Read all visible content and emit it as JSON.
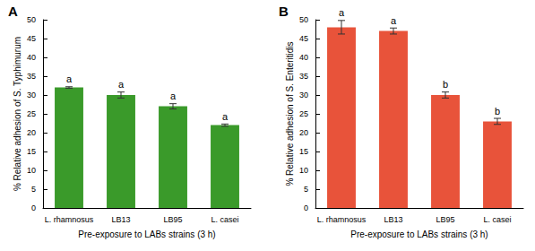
{
  "chart_data": [
    {
      "type": "bar",
      "title": "A",
      "x_label": "Pre-exposure to LABs strains (3 h)",
      "y_label": "% Relative adhesion of S. Typhimurum",
      "categories": [
        "L. rhamnosus",
        "LB13",
        "LB95",
        "L. casei"
      ],
      "values": [
        32,
        30,
        27,
        22
      ],
      "errors": [
        0.2,
        0.8,
        0.7,
        0.3
      ],
      "annotations": [
        "a",
        "a",
        "a",
        "a"
      ],
      "color": "#3a9a2a",
      "ylim": [
        0,
        50
      ],
      "yticks": [
        0,
        5,
        10,
        15,
        20,
        25,
        30,
        35,
        40,
        45,
        50
      ]
    },
    {
      "type": "bar",
      "title": "B",
      "x_label": "Pre-exposure to LABs strains (3 h)",
      "y_label": "% Relative adhesion of S. Enteritidis",
      "categories": [
        "L. rhamnosus",
        "LB13",
        "LB95",
        "L. casei"
      ],
      "values": [
        48,
        47,
        30,
        23
      ],
      "errors": [
        1.8,
        0.8,
        0.8,
        0.8
      ],
      "annotations": [
        "a",
        "a",
        "b",
        "b"
      ],
      "color": "#e8533a",
      "ylim": [
        0,
        50
      ],
      "yticks": [
        0,
        5,
        10,
        15,
        20,
        25,
        30,
        35,
        40,
        45,
        50
      ]
    }
  ]
}
